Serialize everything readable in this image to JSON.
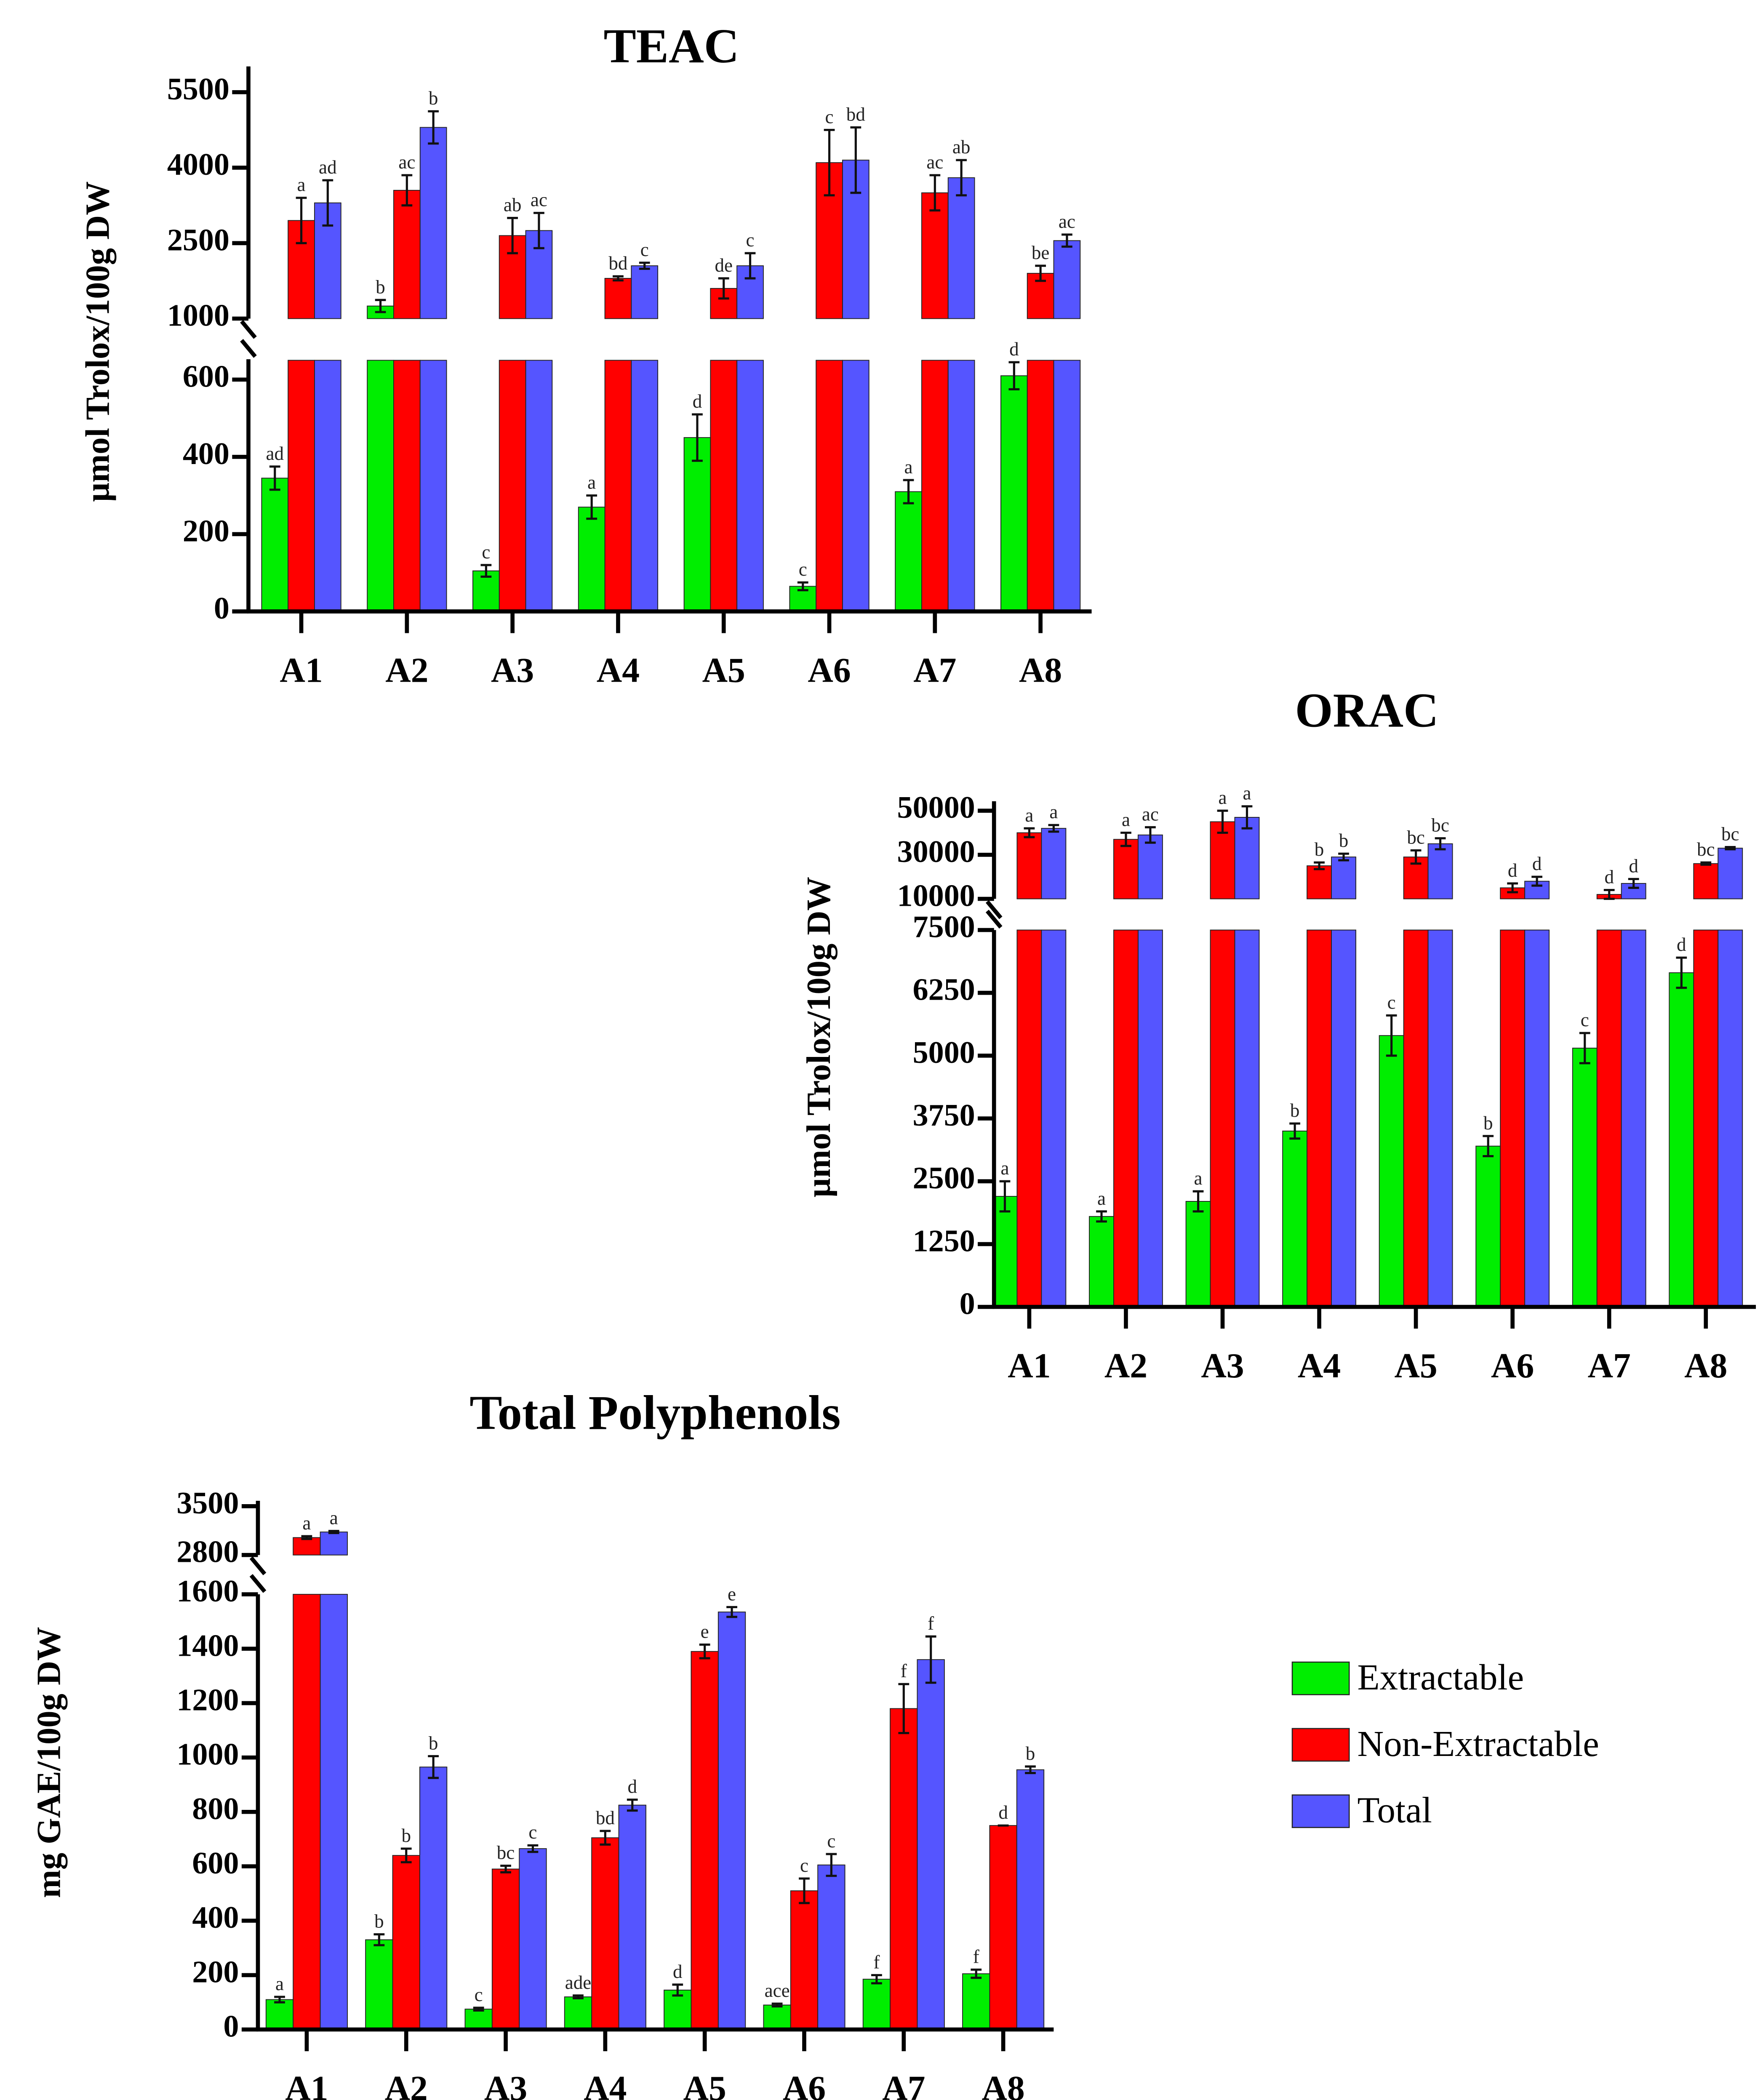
{
  "colors": {
    "Extractable": "#00ee00",
    "Non-Extractable": "#ff0000",
    "Total": "#5555ff"
  },
  "legend": [
    "Extractable",
    "Non-Extractable",
    "Total"
  ],
  "chart_data": [
    {
      "type": "bar",
      "title": "TEAC",
      "ylabel": "µmol Trolox/100g DW",
      "xlabel": "",
      "categories": [
        "A1",
        "A2",
        "A3",
        "A4",
        "A5",
        "A6",
        "A7",
        "A8"
      ],
      "ylim_lower": [
        0,
        650
      ],
      "ylim_upper": [
        1000,
        6000
      ],
      "yticks_lower": [
        "0",
        "200",
        "400",
        "600"
      ],
      "yticks_upper": [
        "1000",
        "2500",
        "4000",
        "5500"
      ],
      "series": [
        {
          "name": "Extractable",
          "values": [
            345,
            1250,
            105,
            270,
            450,
            65,
            310,
            610
          ],
          "errors": [
            30,
            120,
            15,
            30,
            60,
            10,
            30,
            35
          ],
          "letters": [
            "ad",
            "b",
            "c",
            "a",
            "d",
            "c",
            "a",
            "d"
          ]
        },
        {
          "name": "Non-Extractable",
          "values": [
            2950,
            3550,
            2650,
            1800,
            1600,
            4100,
            3500,
            1900
          ],
          "errors": [
            450,
            300,
            350,
            40,
            200,
            650,
            350,
            150
          ],
          "letters": [
            "a",
            "ac",
            "ab",
            "bd",
            "de",
            "c",
            "ac",
            "be"
          ]
        },
        {
          "name": "Total",
          "values": [
            3300,
            4800,
            2750,
            2050,
            2050,
            4150,
            3800,
            2550
          ],
          "errors": [
            450,
            320,
            350,
            60,
            250,
            650,
            350,
            120
          ],
          "letters": [
            "ad",
            "b",
            "ac",
            "c",
            "c",
            "bd",
            "ab",
            "ac"
          ]
        }
      ]
    },
    {
      "type": "bar",
      "title": "ORAC",
      "ylabel": "µmol Trolox/100g DW",
      "xlabel": "",
      "categories": [
        "A1",
        "A2",
        "A3",
        "A4",
        "A5",
        "A6",
        "A7",
        "A8"
      ],
      "ylim_lower": [
        0,
        7500
      ],
      "ylim_upper": [
        10000,
        54000
      ],
      "yticks_lower": [
        "0",
        "1250",
        "2500",
        "3750",
        "5000",
        "6250",
        "7500"
      ],
      "yticks_upper": [
        "10000",
        "30000",
        "50000"
      ],
      "series": [
        {
          "name": "Extractable",
          "values": [
            2200,
            1800,
            2100,
            3500,
            5400,
            3200,
            5150,
            6650
          ],
          "errors": [
            300,
            100,
            200,
            150,
            400,
            200,
            300,
            300
          ],
          "letters": [
            "a",
            "a",
            "a",
            "b",
            "c",
            "b",
            "c",
            "d"
          ]
        },
        {
          "name": "Non-Extractable",
          "values": [
            40000,
            37000,
            45000,
            25000,
            29000,
            15000,
            12000,
            26000
          ],
          "errors": [
            2000,
            3000,
            5000,
            1500,
            3000,
            2000,
            2000,
            500
          ],
          "letters": [
            "a",
            "a",
            "a",
            "b",
            "bc",
            "d",
            "d",
            "bc"
          ]
        },
        {
          "name": "Total",
          "values": [
            42000,
            39000,
            47000,
            29000,
            35000,
            18000,
            17000,
            33000
          ],
          "errors": [
            1500,
            3500,
            5000,
            1500,
            2500,
            2000,
            2000,
            500
          ],
          "letters": [
            "a",
            "ac",
            "a",
            "b",
            "bc",
            "d",
            "d",
            "bc"
          ]
        }
      ]
    },
    {
      "type": "bar",
      "title": "Total Polyphenols",
      "ylabel": "mg GAE/100g DW",
      "xlabel": "",
      "categories": [
        "A1",
        "A2",
        "A3",
        "A4",
        "A5",
        "A6",
        "A7",
        "A8"
      ],
      "ylim_lower": [
        0,
        1600
      ],
      "ylim_upper": [
        2800,
        3500
      ],
      "yticks_lower": [
        "0",
        "200",
        "400",
        "600",
        "800",
        "1000",
        "1200",
        "1400",
        "1600"
      ],
      "yticks_upper": [
        "2800",
        "3500"
      ],
      "series": [
        {
          "name": "Extractable",
          "values": [
            110,
            330,
            75,
            120,
            145,
            90,
            185,
            205
          ],
          "errors": [
            10,
            20,
            5,
            5,
            20,
            5,
            15,
            15
          ],
          "letters": [
            "a",
            "b",
            "c",
            "ade",
            "d",
            "ace",
            "f",
            "f"
          ]
        },
        {
          "name": "Non-Extractable",
          "values": [
            3050,
            640,
            590,
            705,
            1390,
            510,
            1180,
            750
          ],
          "errors": [
            20,
            25,
            12,
            25,
            25,
            45,
            90,
            0
          ],
          "letters": [
            "a",
            "b",
            "bc",
            "bd",
            "e",
            "c",
            "f",
            "d"
          ]
        },
        {
          "name": "Total",
          "values": [
            3130,
            965,
            665,
            825,
            1535,
            605,
            1360,
            955
          ],
          "errors": [
            15,
            40,
            12,
            20,
            18,
            40,
            85,
            12
          ],
          "letters": [
            "a",
            "b",
            "c",
            "d",
            "e",
            "c",
            "f",
            "b"
          ]
        }
      ]
    }
  ]
}
